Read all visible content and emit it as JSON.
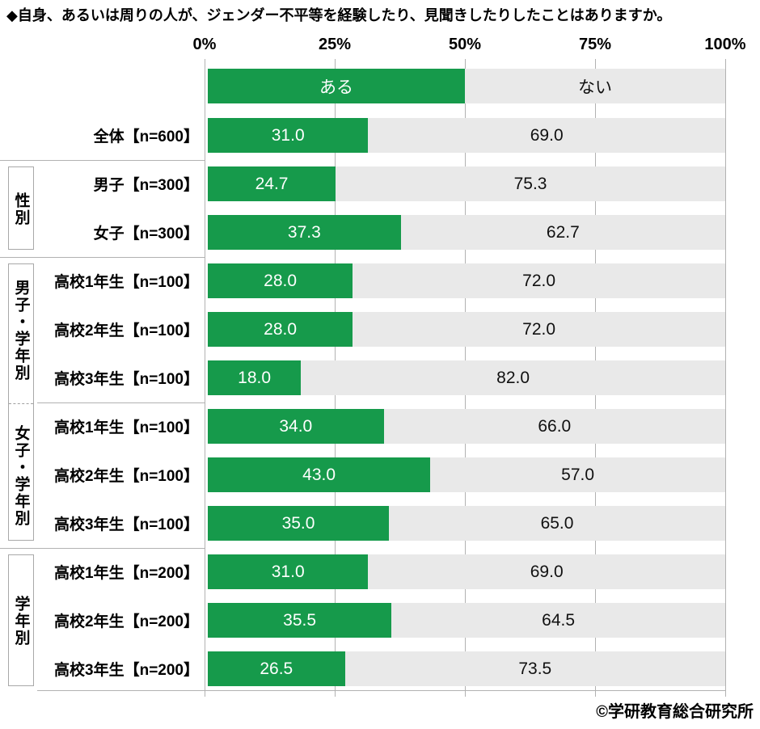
{
  "title": "◆自身、あるいは周りの人が、ジェンダー不平等を経験したり、見聞きしたりしたことはありますか。",
  "footer": "©学研教育総合研究所",
  "axis": {
    "tick_labels": [
      "0%",
      "25%",
      "50%",
      "75%",
      "100%"
    ]
  },
  "legend": {
    "yes_label": "ある",
    "no_label": "ない"
  },
  "colors": {
    "yes_green": "#169a4b",
    "no_gray": "#e9e9e9",
    "grid_gray": "#b2b2b2"
  },
  "chart_data": {
    "type": "bar",
    "orientation": "horizontal",
    "stacked": true,
    "unit": "%",
    "xlim": [
      0,
      100
    ],
    "x_ticks": [
      0,
      25,
      50,
      75,
      100
    ],
    "series_names": [
      "ある",
      "ない"
    ],
    "groups": [
      {
        "label": "",
        "rows": [
          {
            "label": "全体【n=600】",
            "yes": 31.0,
            "no": 69.0
          }
        ]
      },
      {
        "label": "性別",
        "rows": [
          {
            "label": "男子【n=300】",
            "yes": 24.7,
            "no": 75.3
          },
          {
            "label": "女子【n=300】",
            "yes": 37.3,
            "no": 62.7
          }
        ]
      },
      {
        "label": "男子・学年別",
        "rows": [
          {
            "label": "高校1年生【n=100】",
            "yes": 28.0,
            "no": 72.0
          },
          {
            "label": "高校2年生【n=100】",
            "yes": 28.0,
            "no": 72.0
          },
          {
            "label": "高校3年生【n=100】",
            "yes": 18.0,
            "no": 82.0
          }
        ]
      },
      {
        "label": "女子・学年別",
        "rows": [
          {
            "label": "高校1年生【n=100】",
            "yes": 34.0,
            "no": 66.0
          },
          {
            "label": "高校2年生【n=100】",
            "yes": 43.0,
            "no": 57.0
          },
          {
            "label": "高校3年生【n=100】",
            "yes": 35.0,
            "no": 65.0
          }
        ]
      },
      {
        "label": "学年別",
        "rows": [
          {
            "label": "高校1年生【n=200】",
            "yes": 31.0,
            "no": 69.0
          },
          {
            "label": "高校2年生【n=200】",
            "yes": 35.5,
            "no": 64.5
          },
          {
            "label": "高校3年生【n=200】",
            "yes": 26.5,
            "no": 73.5
          }
        ]
      }
    ]
  }
}
